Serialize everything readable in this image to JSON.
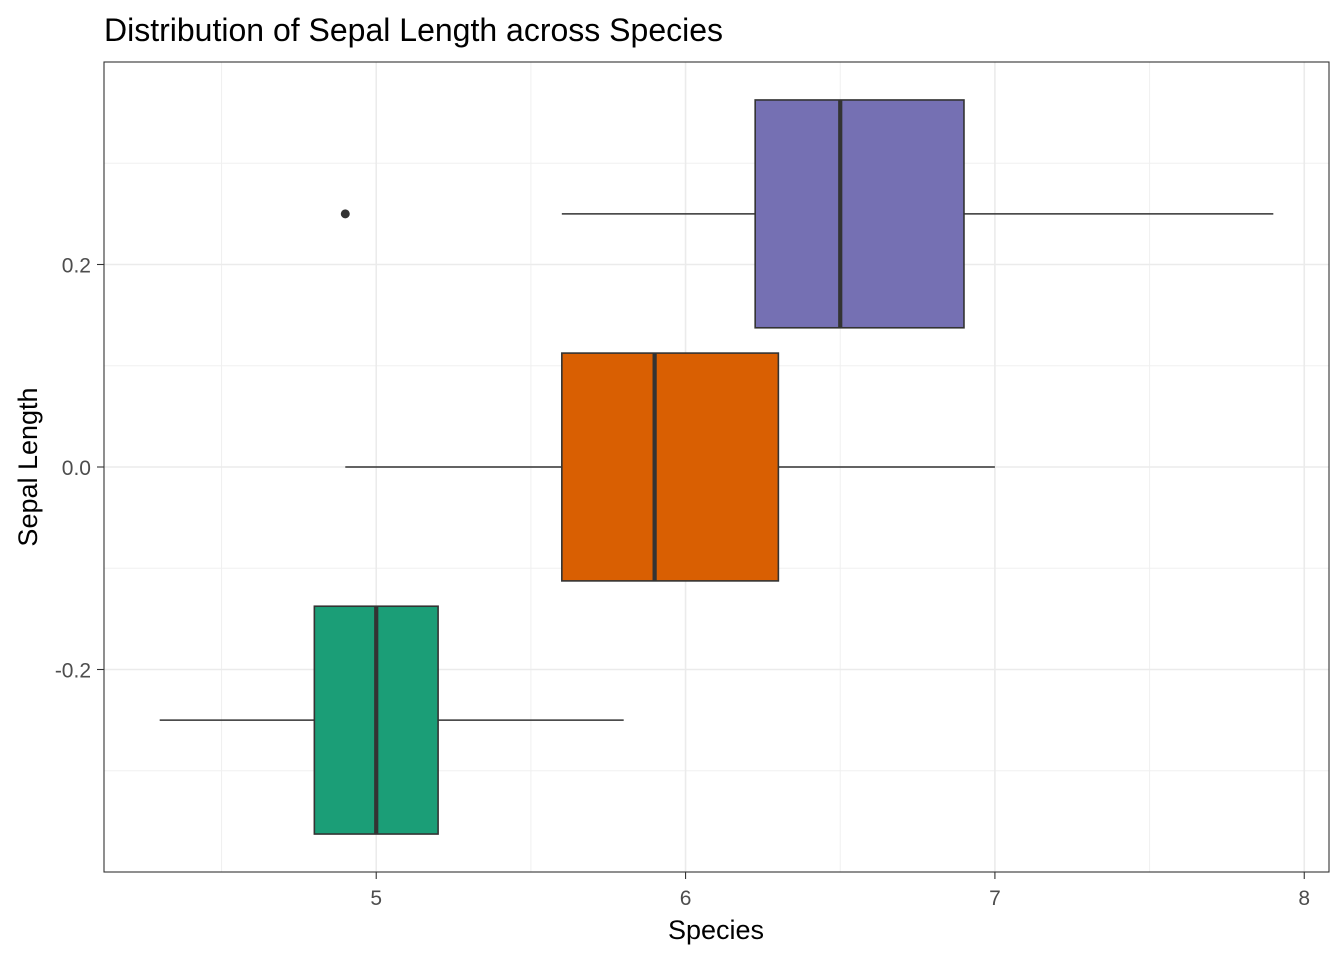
{
  "chart_data": {
    "type": "boxplot",
    "orientation": "horizontal",
    "title": "Distribution of Sepal Length across Species",
    "xlabel": "Species",
    "ylabel": "Sepal Length",
    "xlim": [
      4.12,
      8.08
    ],
    "ylim": [
      -0.4,
      0.4
    ],
    "x_ticks": [
      5,
      6,
      7,
      8
    ],
    "x_tick_labels": [
      "5",
      "6",
      "7",
      "8"
    ],
    "x_minor_ticks": [
      4.5,
      5.5,
      6.5,
      7.5
    ],
    "y_ticks": [
      -0.2,
      0.0,
      0.2
    ],
    "y_tick_labels": [
      "-0.2",
      "0.0",
      "0.2"
    ],
    "y_minor_ticks": [
      -0.3,
      -0.1,
      0.1,
      0.3
    ],
    "grid": true,
    "legend": "none",
    "series": [
      {
        "fill": "#1b9e77",
        "y_center": -0.25,
        "y_low": -0.3625,
        "y_high": -0.1375,
        "whisker_low": 4.3,
        "q1": 4.8,
        "median": 5.0,
        "q3": 5.2,
        "whisker_high": 5.8,
        "outliers": []
      },
      {
        "fill": "#d95f02",
        "y_center": 0.0,
        "y_low": -0.1125,
        "y_high": 0.1125,
        "whisker_low": 4.9,
        "q1": 5.6,
        "median": 5.9,
        "q3": 6.3,
        "whisker_high": 7.0,
        "outliers": []
      },
      {
        "fill": "#7570b3",
        "y_center": 0.25,
        "y_low": 0.1375,
        "y_high": 0.3625,
        "whisker_low": 5.6,
        "q1": 6.225,
        "median": 6.5,
        "q3": 6.9,
        "whisker_high": 7.9,
        "outliers": [
          4.9
        ]
      }
    ]
  }
}
